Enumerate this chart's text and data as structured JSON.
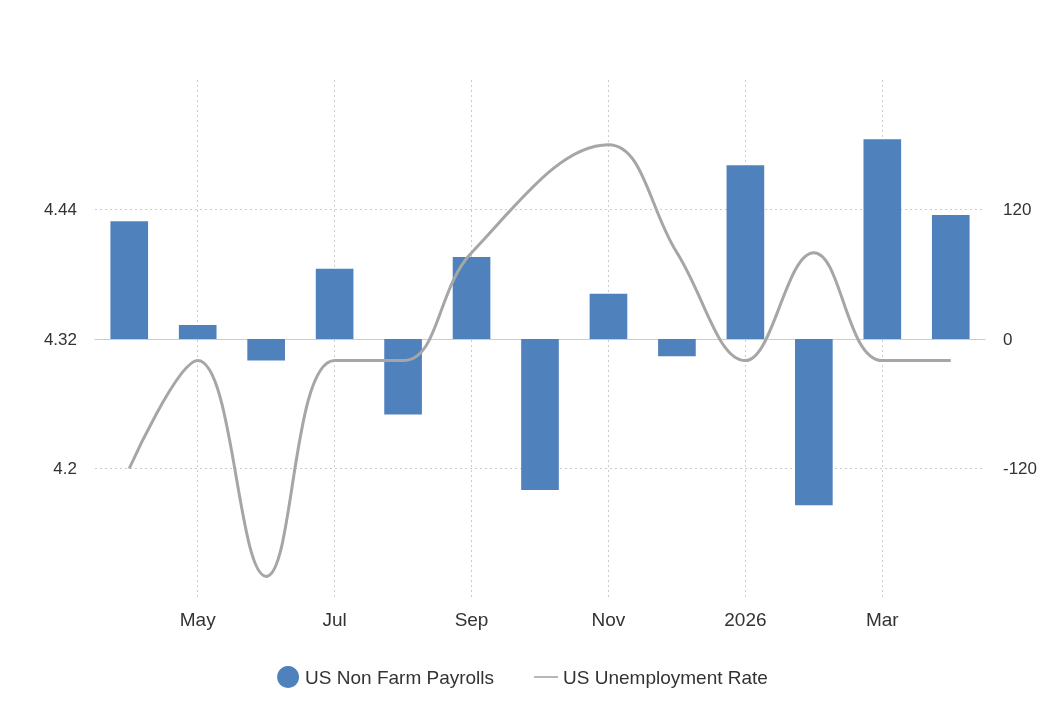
{
  "chart_data": {
    "type": "bar",
    "categories": [
      null,
      "May",
      null,
      "Jul",
      null,
      "Sep",
      null,
      "Nov",
      null,
      "2026",
      null,
      "Mar",
      null
    ],
    "series": [
      {
        "name": "US Non Farm Payrolls",
        "axis": "y2",
        "color": "#4f81bd",
        "values": [
          109,
          13,
          -20,
          65,
          -70,
          76,
          -140,
          42,
          -16,
          161,
          -154,
          185,
          115
        ]
      },
      {
        "name": "US Unemployment Rate",
        "type": "line",
        "color": "#a6a6a6",
        "values": [
          4.2,
          4.3,
          4.1,
          4.3,
          4.3,
          4.4,
          null,
          4.5,
          4.4,
          4.3,
          4.4,
          4.3,
          4.3
        ]
      }
    ],
    "ylim": [
      4.08,
      4.56
    ],
    "yticks": [
      4.2,
      4.32,
      4.44
    ],
    "y2lim": [
      -240,
      240
    ],
    "y2ticks": [
      -120,
      0,
      120
    ],
    "grid": true,
    "legend": "bottom",
    "marker": "none",
    "line_style": "solid"
  }
}
